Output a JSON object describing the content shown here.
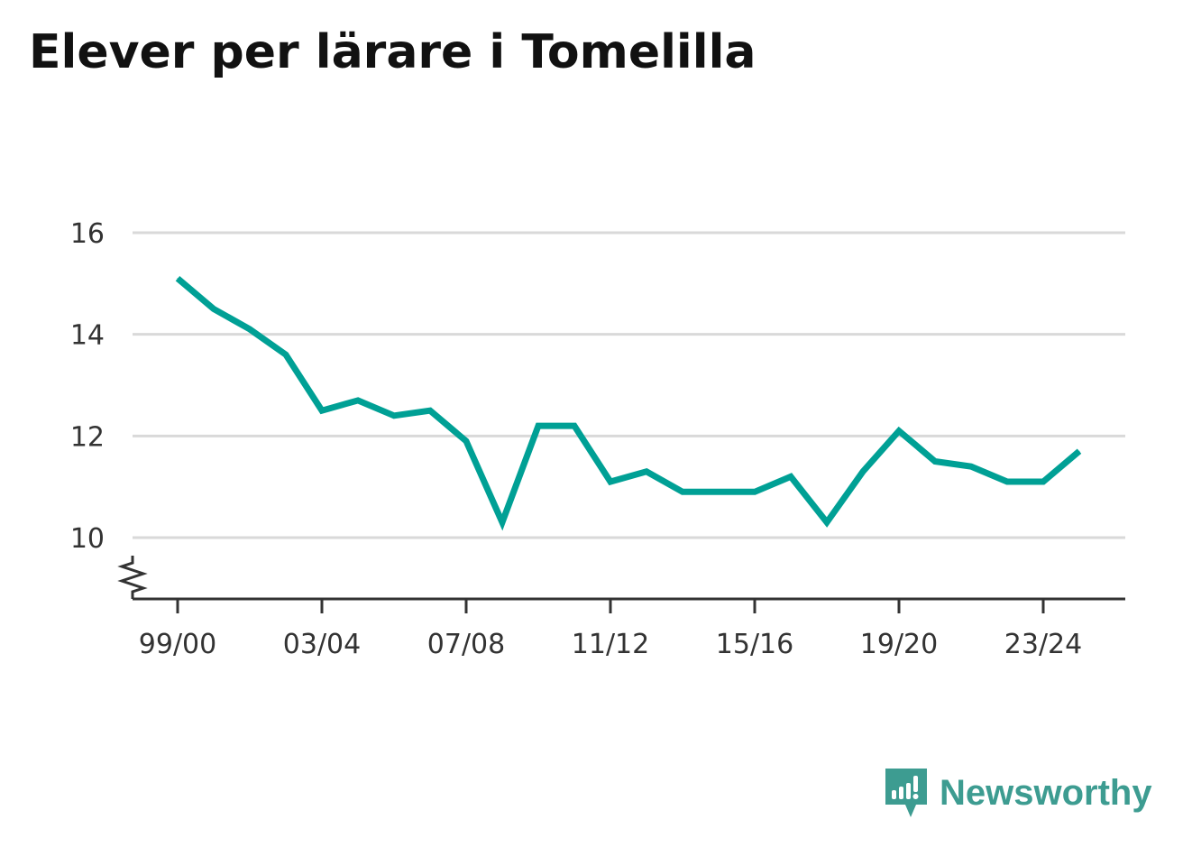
{
  "page": {
    "title": "Elever per lärare i Tomelilla",
    "brand": "Newsworthy"
  },
  "colors": {
    "line": "#00a095",
    "grid": "#d9d9d9",
    "axis": "#333333",
    "brand": "#3d9c91"
  },
  "chart_data": {
    "type": "line",
    "title": "Elever per lärare i Tomelilla",
    "xlabel": "",
    "ylabel": "",
    "ylim": [
      8.8,
      16
    ],
    "y_ticks": [
      10,
      12,
      14,
      16
    ],
    "y_tick_labels": [
      "10",
      "12",
      "14",
      "16"
    ],
    "y_axis_break": true,
    "grid": true,
    "x_ticks": [
      "99/00",
      "03/04",
      "07/08",
      "11/12",
      "15/16",
      "19/20",
      "23/24"
    ],
    "categories": [
      "99/00",
      "00/01",
      "01/02",
      "02/03",
      "03/04",
      "04/05",
      "05/06",
      "06/07",
      "07/08",
      "08/09",
      "09/10",
      "10/11",
      "11/12",
      "12/13",
      "13/14",
      "14/15",
      "15/16",
      "16/17",
      "17/18",
      "18/19",
      "19/20",
      "20/21",
      "21/22",
      "22/23",
      "23/24",
      "24/25"
    ],
    "series": [
      {
        "values": [
          15.1,
          14.5,
          14.1,
          13.6,
          12.5,
          12.7,
          12.4,
          12.5,
          11.9,
          10.3,
          12.2,
          12.2,
          11.1,
          11.3,
          10.9,
          10.9,
          10.9,
          11.2,
          10.3,
          11.3,
          12.1,
          11.5,
          11.4,
          11.1,
          11.1,
          11.7
        ]
      }
    ]
  }
}
